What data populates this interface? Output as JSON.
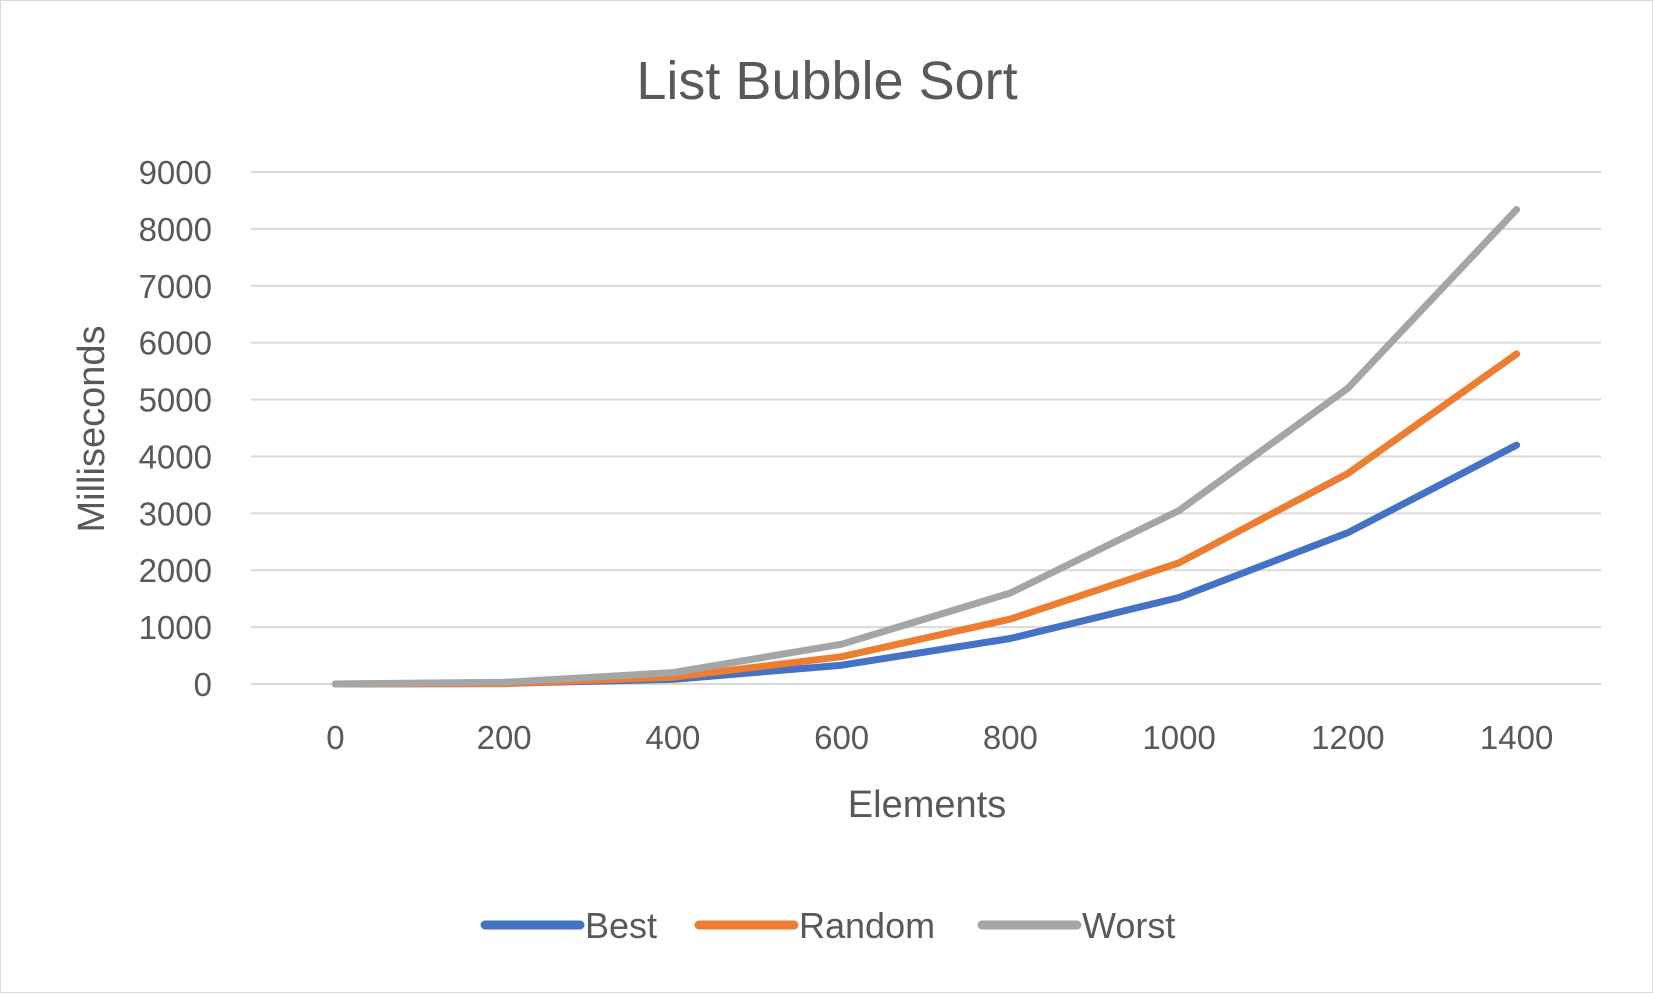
{
  "chart_data": {
    "type": "line",
    "title": "List Bubble Sort",
    "xlabel": "Elements",
    "ylabel": "Milliseconds",
    "x": [
      0,
      200,
      400,
      600,
      800,
      1000,
      1200,
      1400
    ],
    "ylim": [
      0,
      9000
    ],
    "ytick_step": 1000,
    "grid": true,
    "legend_position": "bottom",
    "series": [
      {
        "name": "Best",
        "color": "#4472C4",
        "values": [
          0,
          10,
          80,
          330,
          800,
          1520,
          2660,
          4200
        ]
      },
      {
        "name": "Random",
        "color": "#ED7D31",
        "values": [
          0,
          5,
          120,
          480,
          1140,
          2130,
          3700,
          5800
        ]
      },
      {
        "name": "Worst",
        "color": "#A5A5A5",
        "values": [
          0,
          30,
          200,
          700,
          1600,
          3050,
          5200,
          8340
        ]
      }
    ]
  }
}
